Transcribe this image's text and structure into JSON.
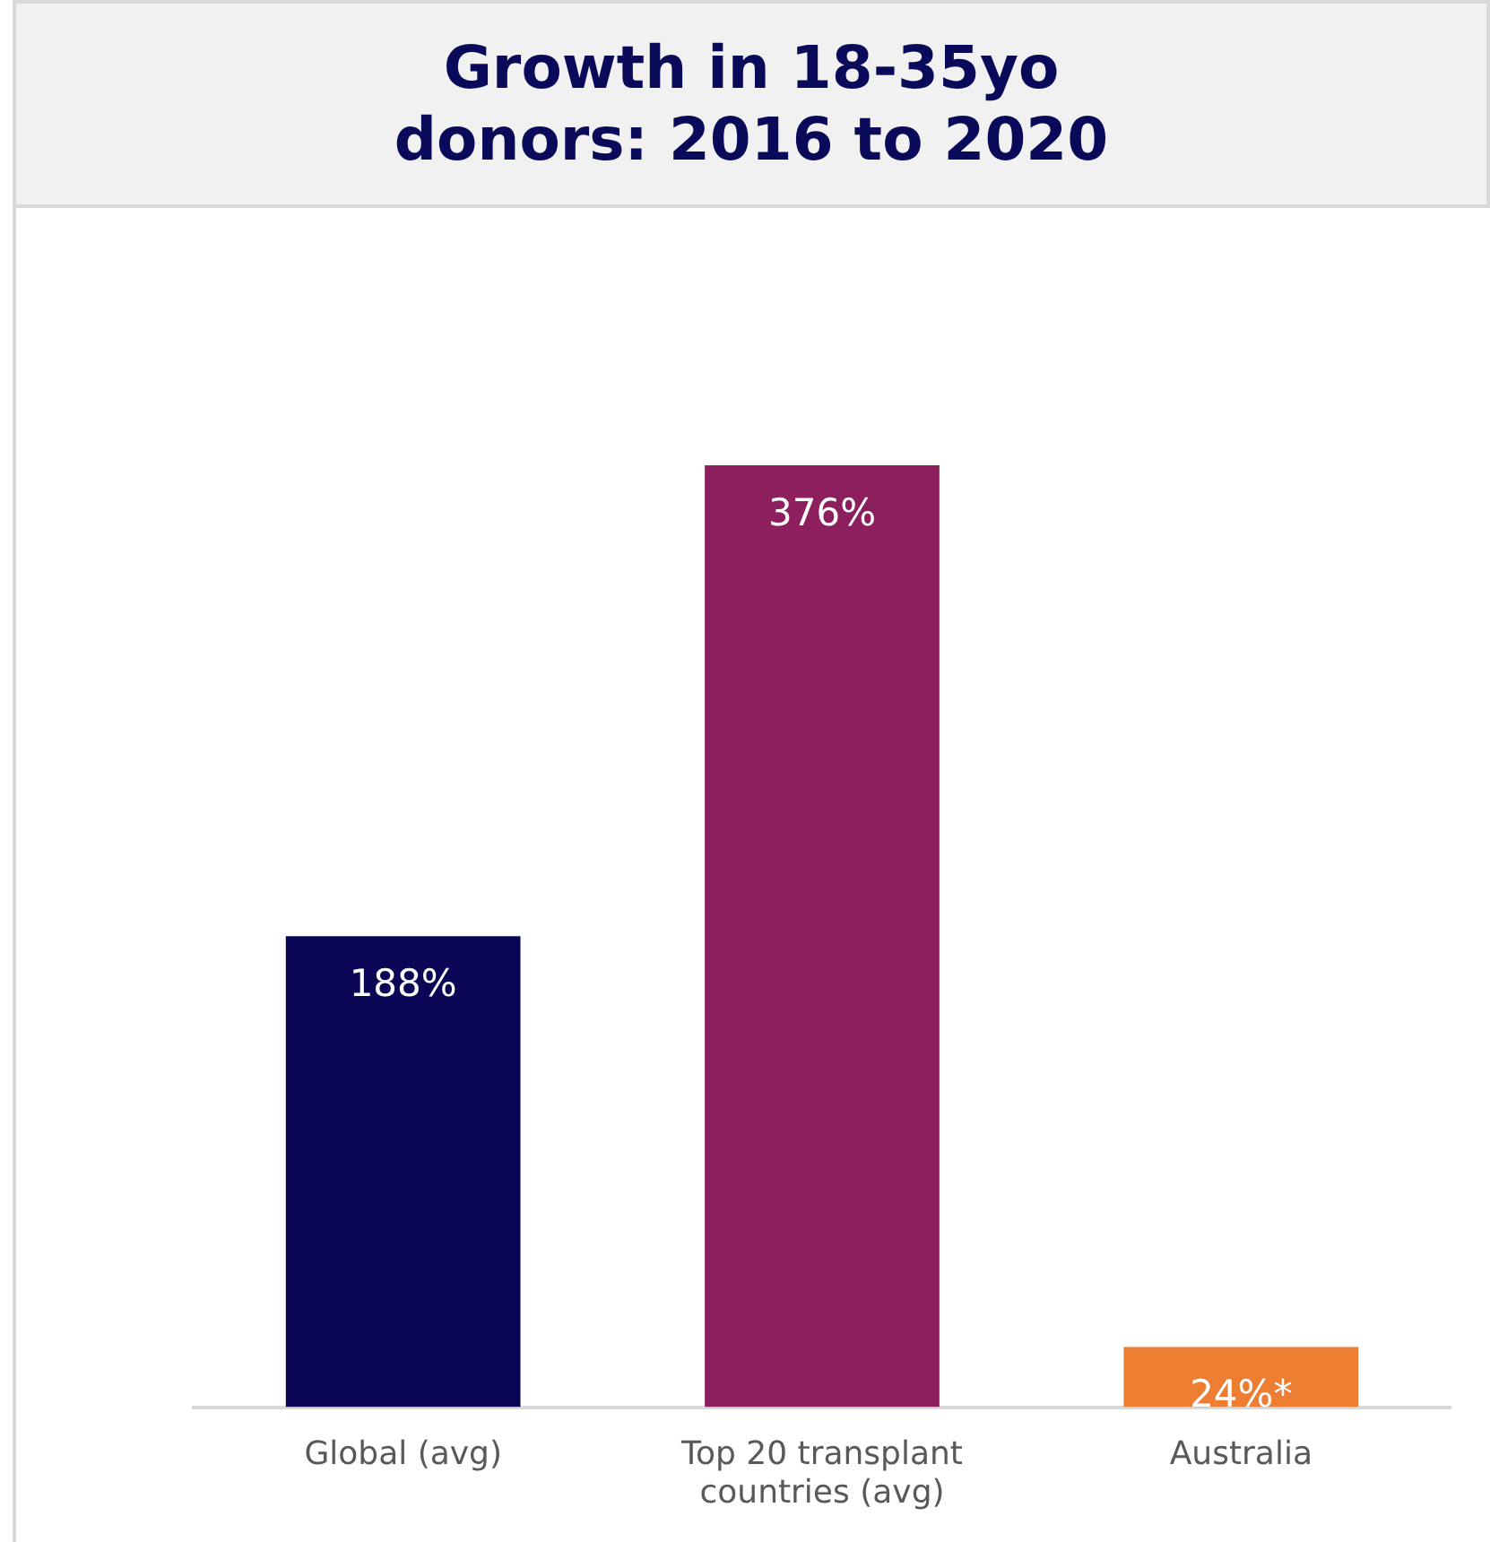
{
  "chart_data": {
    "type": "bar",
    "title": "Growth in 18-35yo donors: 2016 to 2020",
    "categories": [
      "Global (avg)",
      "Top 20 transplant countries (avg)",
      "Australia"
    ],
    "values": [
      188,
      376,
      24
    ],
    "colors": [
      "#0a0655",
      "#8e1f5e",
      "#ed7d31"
    ],
    "value_labels": [
      "188%",
      "376%",
      "24%*"
    ],
    "tick_labels": "x"
  }
}
